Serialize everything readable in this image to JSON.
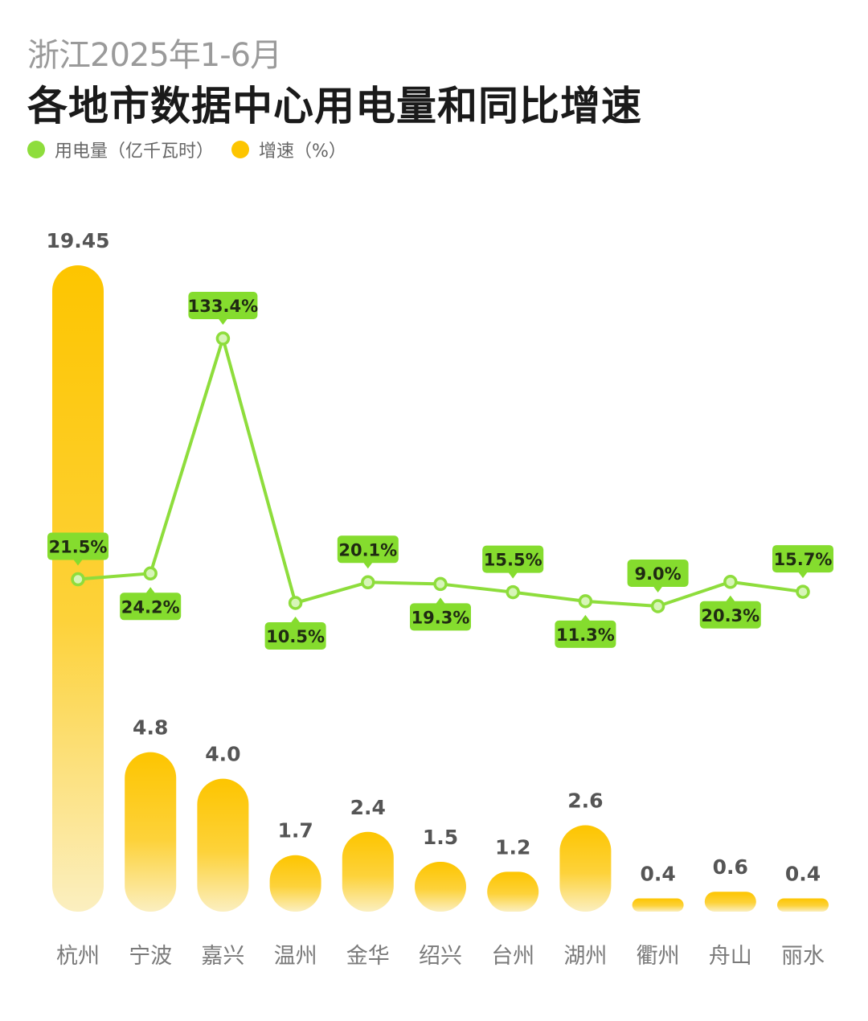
{
  "colors": {
    "line": "#8edd3c",
    "bar_top": "#fdc500",
    "bar_bottom": "#fbeeb5",
    "label_bg": "#85dc2e",
    "axis_text": "#7a7a7a",
    "value_text": "#555555"
  },
  "chart_data": {
    "type": "bar",
    "subtitle": "浙江2025年1-6月",
    "title": "各地市数据中心用电量和同比增速",
    "legend": [
      {
        "name": "用电量（亿千瓦时）",
        "color": "#8edd3c"
      },
      {
        "name": "增速（%）",
        "color": "#fdc500"
      }
    ],
    "categories": [
      "杭州",
      "宁波",
      "嘉兴",
      "温州",
      "金华",
      "绍兴",
      "台州",
      "湖州",
      "衢州",
      "舟山",
      "丽水"
    ],
    "series": [
      {
        "name": "用电量（亿千瓦时）",
        "type": "bar",
        "values": [
          19.45,
          4.8,
          4.0,
          1.7,
          2.4,
          1.5,
          1.2,
          2.6,
          0.4,
          0.6,
          0.4
        ],
        "labels": [
          "19.45",
          "4.8",
          "4.0",
          "1.7",
          "2.4",
          "1.5",
          "1.2",
          "2.6",
          "0.4",
          "0.6",
          "0.4"
        ]
      },
      {
        "name": "增速（%）",
        "type": "line",
        "values": [
          21.5,
          24.2,
          133.4,
          10.5,
          20.1,
          19.3,
          15.5,
          11.3,
          9.0,
          20.3,
          15.7
        ],
        "labels": [
          "21.5%",
          "24.2%",
          "133.4%",
          "10.5%",
          "20.1%",
          "19.3%",
          "15.5%",
          "11.3%",
          "9.0%",
          "20.3%",
          "15.7%"
        ],
        "label_position": [
          "above",
          "below",
          "above",
          "below",
          "above",
          "below",
          "above",
          "below",
          "above",
          "below",
          "above"
        ]
      }
    ]
  }
}
